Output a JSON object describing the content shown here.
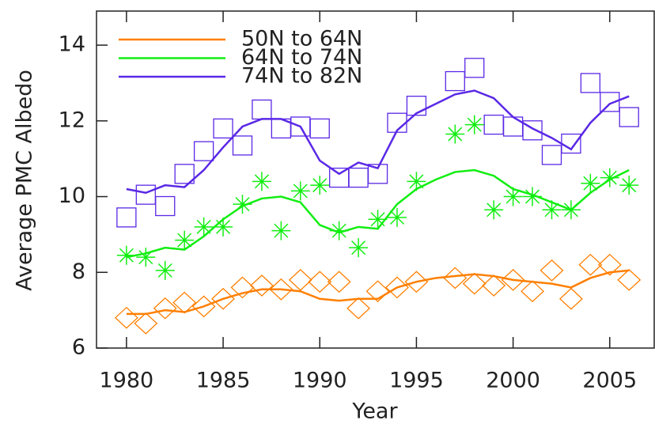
{
  "chart_data": {
    "type": "line",
    "x_label": "Year",
    "y_label": "Average PMC Albedo",
    "x": [
      1980,
      1981,
      1982,
      1983,
      1984,
      1985,
      1986,
      1987,
      1988,
      1989,
      1990,
      1991,
      1992,
      1993,
      1994,
      1995,
      1996,
      1997,
      1998,
      1999,
      2000,
      2001,
      2002,
      2003,
      2004,
      2005,
      2006
    ],
    "xlim": [
      1978.45,
      2007.3
    ],
    "xticks": [
      1980,
      1985,
      1990,
      1995,
      2000,
      2005
    ],
    "ylim": [
      6,
      14.9
    ],
    "yticks": [
      6,
      8,
      10,
      12,
      14
    ],
    "series": [
      {
        "name": "50N to 64N",
        "color": "#ff7f00",
        "marker": "diamond",
        "values": [
          6.9,
          6.9,
          7.0,
          6.95,
          7.1,
          7.3,
          7.45,
          7.55,
          7.55,
          7.5,
          7.3,
          7.25,
          7.3,
          7.3,
          7.6,
          7.75,
          7.85,
          7.9,
          7.95,
          7.9,
          7.8,
          7.75,
          7.7,
          7.6,
          7.85,
          8.0,
          8.05
        ],
        "points": [
          6.8,
          6.65,
          7.05,
          7.2,
          7.1,
          7.3,
          7.6,
          7.65,
          7.55,
          7.8,
          7.75,
          7.75,
          7.05,
          7.5,
          7.6,
          7.75,
          null,
          7.85,
          7.7,
          7.65,
          7.8,
          7.5,
          8.05,
          7.3,
          8.2,
          8.2,
          7.8
        ]
      },
      {
        "name": "64N to 74N",
        "color": "#11ee11",
        "marker": "asterisk",
        "values": [
          8.4,
          8.5,
          8.65,
          8.6,
          8.95,
          9.4,
          9.75,
          9.95,
          10.0,
          9.85,
          9.25,
          9.05,
          9.2,
          9.15,
          9.8,
          10.2,
          10.45,
          10.65,
          10.7,
          10.55,
          10.2,
          10.05,
          9.85,
          9.65,
          10.1,
          10.45,
          10.7
        ],
        "points": [
          8.45,
          8.4,
          8.05,
          8.85,
          9.2,
          9.2,
          9.8,
          10.4,
          9.1,
          10.15,
          10.3,
          9.1,
          8.65,
          9.4,
          9.45,
          10.4,
          null,
          11.65,
          11.9,
          9.65,
          10.0,
          10.0,
          9.65,
          9.65,
          10.35,
          10.5,
          10.3
        ]
      },
      {
        "name": "74N to 82N",
        "color": "#5a28e6",
        "marker": "square",
        "values": [
          10.2,
          10.1,
          10.3,
          10.25,
          10.7,
          11.3,
          11.85,
          12.05,
          12.05,
          11.85,
          10.95,
          10.6,
          10.9,
          10.75,
          11.75,
          12.2,
          12.45,
          12.7,
          12.8,
          12.6,
          12.1,
          11.8,
          11.55,
          11.25,
          11.95,
          12.45,
          12.65
        ],
        "points": [
          9.45,
          10.05,
          9.75,
          10.6,
          11.2,
          11.8,
          11.35,
          12.3,
          11.8,
          11.85,
          11.8,
          10.5,
          10.5,
          10.6,
          11.95,
          12.4,
          null,
          13.05,
          13.4,
          11.9,
          11.85,
          11.75,
          11.1,
          11.4,
          13.0,
          12.5,
          12.1
        ]
      }
    ]
  }
}
